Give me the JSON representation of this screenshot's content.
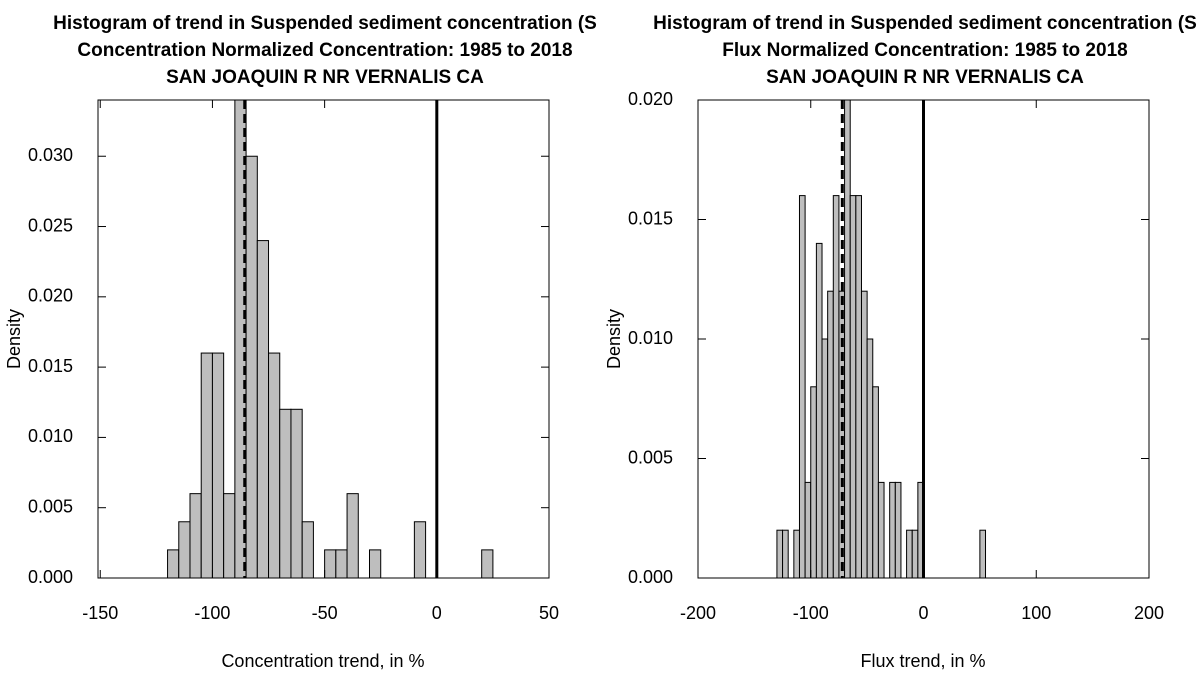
{
  "chart_data": [
    {
      "type": "histogram",
      "title": [
        "Histogram of trend in Suspended sediment concentration (S",
        "Concentration Normalized Concentration: 1985 to 2018",
        "SAN JOAQUIN R NR VERNALIS CA"
      ],
      "xlabel": "Concentration trend, in %",
      "ylabel": "Density",
      "bins": [
        -120,
        -115,
        -110,
        -105,
        -100,
        -95,
        -90,
        -85,
        -80,
        -75,
        -70,
        -65,
        -60,
        -55,
        -50,
        -45,
        -40,
        -35,
        -30,
        -25,
        -20,
        -15,
        -10,
        -5,
        0,
        5,
        10,
        15,
        20,
        25
      ],
      "values": [
        0.002,
        0.004,
        0.006,
        0.016,
        0.016,
        0.006,
        0.036,
        0.03,
        0.024,
        0.016,
        0.012,
        0.012,
        0.004,
        0,
        0.002,
        0.002,
        0.006,
        0,
        0.002,
        0,
        0,
        0,
        0.004,
        0,
        0,
        0,
        0,
        0,
        0.002
      ],
      "color": "#bebebe",
      "xlim": [
        -151,
        50
      ],
      "ylim": [
        0,
        0.034
      ],
      "xticks": [
        -150,
        -100,
        -50,
        0,
        50
      ],
      "yticks": [
        {
          "value": 0,
          "label": "0.000"
        },
        {
          "value": 0.005,
          "label": "0.005"
        },
        {
          "value": 0.01,
          "label": "0.010"
        },
        {
          "value": 0.015,
          "label": "0.015"
        },
        {
          "value": 0.02,
          "label": "0.020"
        },
        {
          "value": 0.025,
          "label": "0.025"
        },
        {
          "value": 0.03,
          "label": "0.030"
        }
      ],
      "vlines": [
        {
          "value": -85.6,
          "style": "dashed"
        },
        {
          "value": 0,
          "style": "solid"
        }
      ]
    },
    {
      "type": "histogram",
      "title": [
        "Histogram of trend in Suspended sediment concentration (S",
        "Flux Normalized Concentration: 1985 to 2018",
        "SAN JOAQUIN R NR VERNALIS CA"
      ],
      "xlabel": "Flux trend, in %",
      "ylabel": "Density",
      "bins": [
        -130,
        -125,
        -120,
        -115,
        -110,
        -105,
        -100,
        -95,
        -90,
        -85,
        -80,
        -75,
        -70,
        -65,
        -60,
        -55,
        -50,
        -45,
        -40,
        -35,
        -30,
        -25,
        -20,
        -15,
        -10,
        -5,
        0,
        5,
        10,
        15,
        20,
        25,
        30,
        35,
        40,
        45,
        50,
        55
      ],
      "values": [
        0.002,
        0.002,
        0,
        0.002,
        0.016,
        0.004,
        0.008,
        0.014,
        0.01,
        0.012,
        0.016,
        0.012,
        0.022,
        0.016,
        0.016,
        0.012,
        0.01,
        0.008,
        0.004,
        0,
        0.004,
        0.004,
        0,
        0.002,
        0.002,
        0.004,
        0,
        0,
        0,
        0,
        0,
        0,
        0,
        0,
        0,
        0,
        0.002
      ],
      "color": "#bebebe",
      "xlim": [
        -200,
        200
      ],
      "ylim": [
        0,
        0.02
      ],
      "xticks": [
        -200,
        -100,
        0,
        100,
        200
      ],
      "yticks": [
        {
          "value": 0,
          "label": "0.000"
        },
        {
          "value": 0.005,
          "label": "0.005"
        },
        {
          "value": 0.01,
          "label": "0.010"
        },
        {
          "value": 0.015,
          "label": "0.015"
        },
        {
          "value": 0.02,
          "label": "0.020"
        }
      ],
      "vlines": [
        {
          "value": -72,
          "style": "dashed"
        },
        {
          "value": 0,
          "style": "solid"
        }
      ]
    }
  ]
}
